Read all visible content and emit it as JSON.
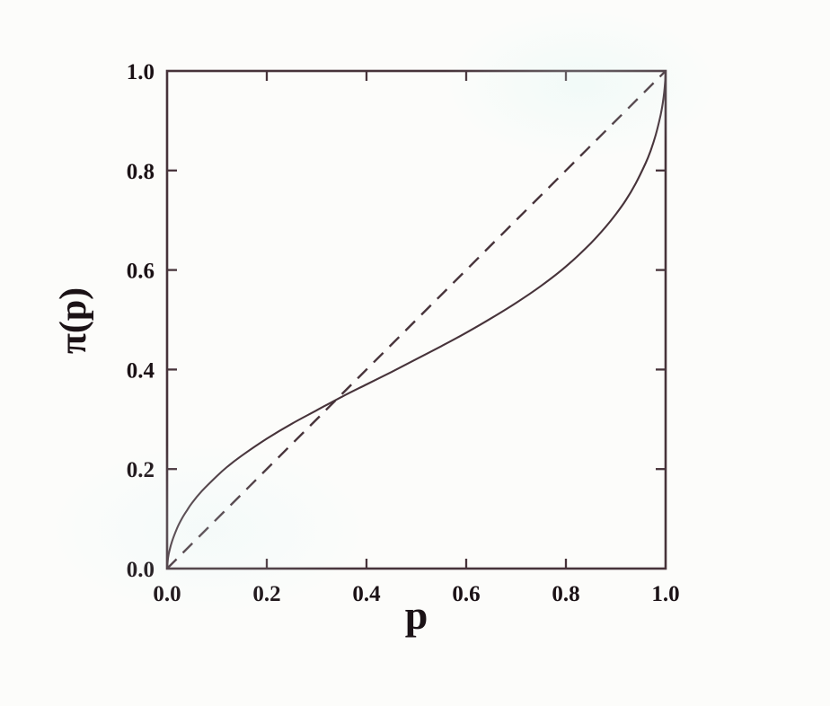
{
  "figure": {
    "background": "#fcfcfa",
    "ink": "#47333a",
    "text_color": "#1b1216"
  },
  "chart_data": {
    "type": "line",
    "title": "",
    "xlabel": "p",
    "ylabel": "π(p)",
    "xlim": [
      0,
      1
    ],
    "ylim": [
      0,
      1
    ],
    "grid": false,
    "legend": "none",
    "x_tick_values": [
      0,
      0.2,
      0.4,
      0.6,
      0.8,
      1
    ],
    "x_tick_labels": [
      "0.0",
      "0.2",
      "0.4",
      "0.6",
      "0.8",
      "1.0"
    ],
    "y_tick_values": [
      0,
      0.2,
      0.4,
      0.6,
      0.8,
      1
    ],
    "y_tick_labels": [
      "0.0",
      "0.2",
      "0.4",
      "0.6",
      "0.8",
      "1.0"
    ],
    "crossover_point": {
      "p": 0.34,
      "pi": 0.34
    },
    "series": [
      {
        "name": "identity-diagonal",
        "description": "dashed 45-degree reference line pi(p) = p",
        "style": "dashed",
        "color": "#47333a",
        "points": [
          [
            0,
            0
          ],
          [
            1,
            1
          ]
        ]
      },
      {
        "name": "probability-weighting-curve",
        "description": "solid inverse-S probability weighting function; overweights small probabilities, underweights large ones, crosses the diagonal near p = 0.34",
        "style": "solid",
        "color": "#47333a",
        "points": [
          [
            0,
            0
          ],
          [
            0.002,
            0.022
          ],
          [
            0.005,
            0.037
          ],
          [
            0.01,
            0.055
          ],
          [
            0.02,
            0.081
          ],
          [
            0.03,
            0.101
          ],
          [
            0.04,
            0.117
          ],
          [
            0.05,
            0.132
          ],
          [
            0.07,
            0.156
          ],
          [
            0.1,
            0.186
          ],
          [
            0.12,
            0.204
          ],
          [
            0.15,
            0.227
          ],
          [
            0.2,
            0.261
          ],
          [
            0.25,
            0.291
          ],
          [
            0.3,
            0.318
          ],
          [
            0.35,
            0.345
          ],
          [
            0.4,
            0.37
          ],
          [
            0.45,
            0.395
          ],
          [
            0.5,
            0.421
          ],
          [
            0.55,
            0.447
          ],
          [
            0.6,
            0.474
          ],
          [
            0.65,
            0.503
          ],
          [
            0.7,
            0.534
          ],
          [
            0.75,
            0.568
          ],
          [
            0.8,
            0.607
          ],
          [
            0.85,
            0.654
          ],
          [
            0.88,
            0.687
          ],
          [
            0.9,
            0.712
          ],
          [
            0.92,
            0.74
          ],
          [
            0.94,
            0.774
          ],
          [
            0.96,
            0.815
          ],
          [
            0.97,
            0.84
          ],
          [
            0.98,
            0.871
          ],
          [
            0.99,
            0.912
          ],
          [
            0.995,
            0.94
          ],
          [
            0.999,
            0.977
          ],
          [
            1,
            1
          ]
        ]
      }
    ]
  }
}
